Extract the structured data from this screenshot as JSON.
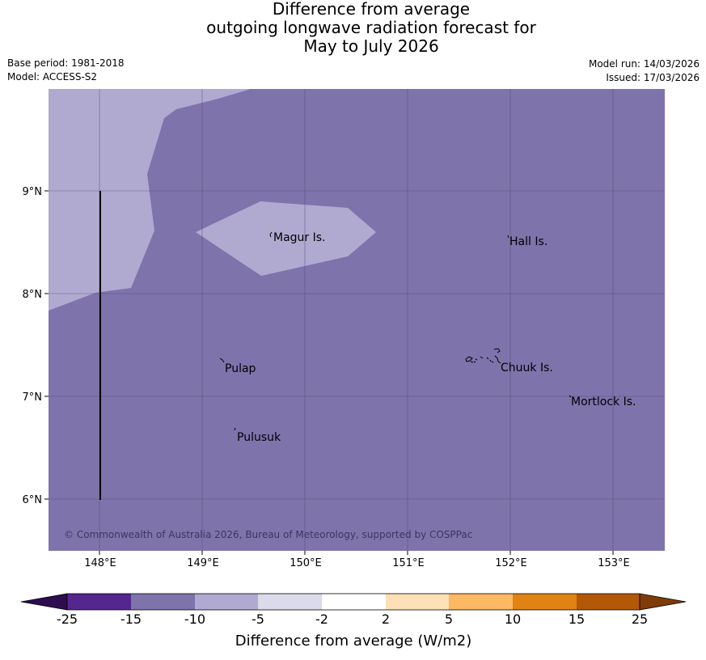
{
  "title": {
    "line1": "Difference from average",
    "line2": "outgoing longwave radiation forecast for",
    "line3": "May to July 2026"
  },
  "meta": {
    "base_period": "Base period: 1981-2018",
    "model": "Model: ACCESS-S2",
    "model_run": "Model run: 14/03/2026",
    "issued": "Issued: 17/03/2026"
  },
  "map": {
    "lat_ticks": [
      "9°N",
      "8°N",
      "7°N",
      "6°N"
    ],
    "lon_ticks": [
      "148°E",
      "149°E",
      "150°E",
      "151°E",
      "152°E",
      "153°E"
    ],
    "places": {
      "magur": "Magur Is.",
      "hall": "Hall Is.",
      "pulap": "Pulap",
      "chuuk": "Chuuk Is.",
      "mortlock": "Mortlock Is.",
      "pulusuk": "Pulusuk"
    },
    "copyright": "© Commonwealth of Australia 2026, Bureau of Meteorology, supported by COSPPac",
    "colors": {
      "anomaly_minus15_to_minus10": "#7f73ac",
      "anomaly_minus10_to_minus5": "#b0aad1"
    }
  },
  "legend": {
    "ticks": [
      "-25",
      "-15",
      "-10",
      "-5",
      "-2",
      "2",
      "5",
      "10",
      "15",
      "25"
    ],
    "colors": [
      "#2d0d4f",
      "#54278f",
      "#7f73ac",
      "#b0aad1",
      "#dadaeb",
      "#ffffff",
      "#fee0b6",
      "#fdb863",
      "#e08214",
      "#b35806",
      "#7f3b08"
    ],
    "label": "Difference from average (W/m2)"
  }
}
